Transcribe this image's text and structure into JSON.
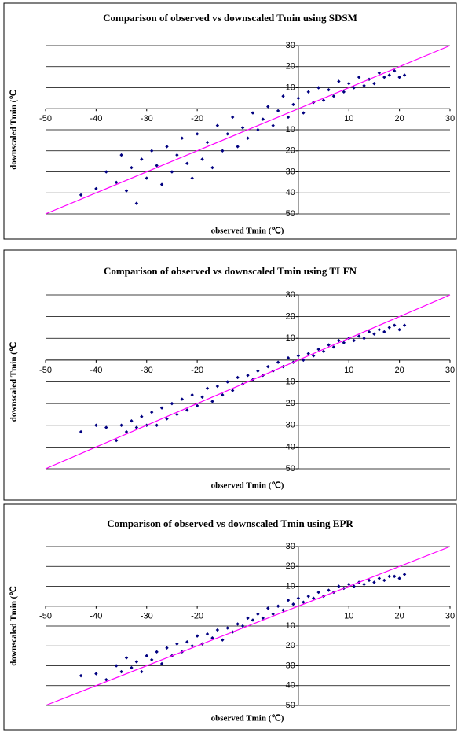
{
  "chart_data": [
    {
      "type": "scatter",
      "title": "Comparison of observed vs downscaled Tmin using SDSM",
      "x_label": "observed Tmin (℃)",
      "y_label": "downscaled Tmin (℃",
      "color": "#000080",
      "x": [
        -43,
        -40,
        -38,
        -36,
        -35,
        -34,
        -33,
        -32,
        -31,
        -30,
        -29,
        -28,
        -27,
        -26,
        -25,
        -24,
        -23,
        -22,
        -21,
        -20,
        -19,
        -18,
        -17,
        -16,
        -15,
        -14,
        -13,
        -12,
        -11,
        -10,
        -9,
        -8,
        -7,
        -6,
        -5,
        -4,
        -3,
        -2,
        -1,
        0,
        1,
        2,
        3,
        4,
        5,
        6,
        7,
        8,
        9,
        10,
        11,
        12,
        13,
        14,
        15,
        16,
        17,
        18,
        19,
        20,
        21
      ],
      "y": [
        -41,
        -38,
        -30,
        -35,
        -22,
        -39,
        -28,
        -45,
        -24,
        -33,
        -20,
        -27,
        -36,
        -18,
        -30,
        -22,
        -14,
        -26,
        -33,
        -12,
        -24,
        -16,
        -28,
        -8,
        -20,
        -12,
        -4,
        -18,
        -9,
        -14,
        -2,
        -10,
        -5,
        1,
        -8,
        -1,
        6,
        -4,
        2,
        5,
        -2,
        8,
        3,
        10,
        4,
        9,
        6,
        13,
        8,
        12,
        10,
        15,
        11,
        14,
        12,
        17,
        15,
        16,
        18,
        15,
        16
      ],
      "reference_line": {
        "x": [
          -50,
          30
        ],
        "y": [
          -50,
          30
        ],
        "color": "#ff00ff"
      },
      "xlim": [
        -50,
        30
      ],
      "ylim": [
        -50,
        30
      ],
      "xticks": [
        -50,
        -40,
        -30,
        -20,
        10,
        20,
        30
      ],
      "yticks": [
        30,
        20,
        10,
        {
          "value": -10,
          "label": "10"
        },
        {
          "value": -20,
          "label": "20"
        },
        {
          "value": -30,
          "label": "30"
        },
        {
          "value": -40,
          "label": "40"
        },
        {
          "value": -50,
          "label": "50"
        }
      ],
      "grid": true
    },
    {
      "type": "scatter",
      "title": "Comparison of observed vs downscaled Tmin using TLFN",
      "x_label": "observed Tmin (℃)",
      "y_label": "downscaled Tmin (℃",
      "color": "#000080",
      "x": [
        -43,
        -40,
        -38,
        -36,
        -35,
        -34,
        -33,
        -32,
        -31,
        -30,
        -29,
        -28,
        -27,
        -26,
        -25,
        -24,
        -23,
        -22,
        -21,
        -20,
        -19,
        -18,
        -17,
        -16,
        -15,
        -14,
        -13,
        -12,
        -11,
        -10,
        -9,
        -8,
        -7,
        -6,
        -5,
        -4,
        -3,
        -2,
        -1,
        0,
        1,
        2,
        3,
        4,
        5,
        6,
        7,
        8,
        9,
        10,
        11,
        12,
        13,
        14,
        15,
        16,
        17,
        18,
        19,
        20,
        21
      ],
      "y": [
        -33,
        -30,
        -31,
        -37,
        -30,
        -33,
        -28,
        -31,
        -26,
        -30,
        -24,
        -30,
        -22,
        -27,
        -20,
        -25,
        -18,
        -23,
        -16,
        -21,
        -17,
        -13,
        -19,
        -12,
        -16,
        -10,
        -14,
        -8,
        -11,
        -7,
        -9,
        -5,
        -7,
        -3,
        -5,
        -1,
        -3,
        1,
        -1,
        2,
        0,
        3,
        2,
        5,
        4,
        7,
        6,
        9,
        8,
        10,
        9,
        11,
        10,
        13,
        12,
        14,
        13,
        15,
        16,
        14,
        16
      ],
      "reference_line": {
        "x": [
          -50,
          30
        ],
        "y": [
          -50,
          30
        ],
        "color": "#ff00ff"
      },
      "xlim": [
        -50,
        30
      ],
      "ylim": [
        -50,
        30
      ],
      "xticks": [
        -50,
        -40,
        -30,
        -20,
        10,
        20,
        30
      ],
      "yticks": [
        30,
        20,
        10,
        {
          "value": -10,
          "label": "10"
        },
        {
          "value": -20,
          "label": "20"
        },
        {
          "value": -30,
          "label": "30"
        },
        {
          "value": -40,
          "label": "40"
        },
        {
          "value": -50,
          "label": "50"
        }
      ],
      "grid": true
    },
    {
      "type": "scatter",
      "title": "Comparison of observed vs downscaled Tmin using EPR",
      "x_label": "observed Tmin (℃)",
      "y_label": "downscaled Tmin (℃",
      "color": "#000080",
      "x": [
        -43,
        -40,
        -38,
        -36,
        -35,
        -34,
        -33,
        -32,
        -31,
        -30,
        -29,
        -28,
        -27,
        -26,
        -25,
        -24,
        -23,
        -22,
        -21,
        -20,
        -19,
        -18,
        -17,
        -16,
        -15,
        -14,
        -13,
        -12,
        -11,
        -10,
        -9,
        -8,
        -7,
        -6,
        -5,
        -4,
        -3,
        -2,
        -1,
        0,
        1,
        2,
        3,
        4,
        5,
        6,
        7,
        8,
        9,
        10,
        11,
        12,
        13,
        14,
        15,
        16,
        17,
        18,
        19,
        20,
        21
      ],
      "y": [
        -35,
        -34,
        -37,
        -30,
        -33,
        -26,
        -31,
        -28,
        -33,
        -25,
        -27,
        -23,
        -29,
        -21,
        -25,
        -19,
        -23,
        -18,
        -20,
        -15,
        -19,
        -14,
        -16,
        -12,
        -17,
        -11,
        -13,
        -9,
        -10,
        -6,
        -7,
        -4,
        -6,
        -1,
        -4,
        0,
        -2,
        3,
        1,
        4,
        2,
        5,
        4,
        7,
        5,
        8,
        7,
        10,
        9,
        11,
        10,
        12,
        11,
        13,
        12,
        14,
        13,
        15,
        15,
        14,
        16
      ],
      "reference_line": {
        "x": [
          -50,
          30
        ],
        "y": [
          -50,
          30
        ],
        "color": "#ff00ff"
      },
      "xlim": [
        -50,
        30
      ],
      "ylim": [
        -50,
        30
      ],
      "xticks": [
        -50,
        -40,
        -30,
        -20,
        10,
        20,
        30
      ],
      "yticks": [
        30,
        20,
        10,
        {
          "value": -10,
          "label": "10"
        },
        {
          "value": -20,
          "label": "20"
        },
        {
          "value": -30,
          "label": "30"
        },
        {
          "value": -40,
          "label": "40"
        },
        {
          "value": -50,
          "label": "50"
        }
      ],
      "grid": true
    }
  ]
}
